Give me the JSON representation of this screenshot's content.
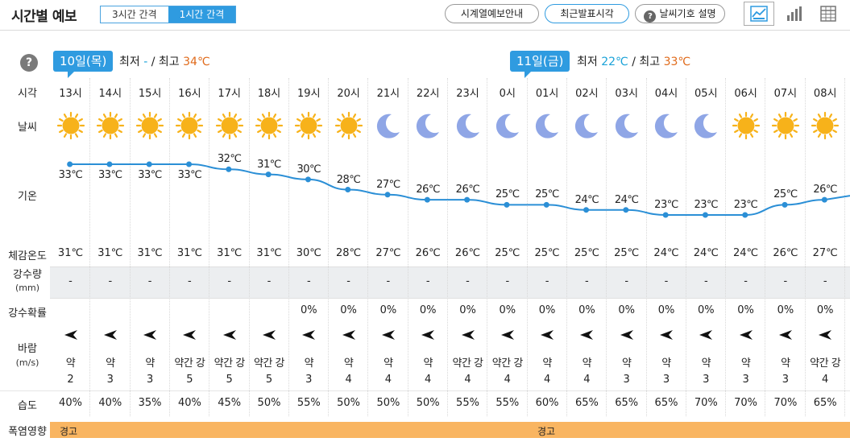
{
  "header": {
    "title": "시간별 예보",
    "seg_3h": "3시간 간격",
    "seg_1h": "1시간 간격",
    "btn_timeseries": "시계열예보안내",
    "btn_recent": "최근발표시각",
    "btn_symbols": "날씨기호 설명",
    "views": [
      "graph-view-icon",
      "bar-view-icon",
      "table-view-icon"
    ]
  },
  "days": [
    {
      "badge": "10일(목)",
      "min_label": "최저",
      "min": "-",
      "sep": "/",
      "max_label": "최고",
      "max": "34℃"
    },
    {
      "badge": "11일(금)",
      "min_label": "최저",
      "min": "22℃",
      "sep": "/",
      "max_label": "최고",
      "max": "33℃"
    }
  ],
  "row_labels": {
    "time": "시각",
    "weather": "날씨",
    "temp": "기온",
    "feels": "체감온도",
    "precip": "강수량",
    "precip_unit": "(mm)",
    "prob": "강수확률",
    "wind": "바람",
    "wind_unit": "(m/s)",
    "humidity": "습도",
    "heat": "폭염영향"
  },
  "hours": [
    "13시",
    "14시",
    "15시",
    "16시",
    "17시",
    "18시",
    "19시",
    "20시",
    "21시",
    "22시",
    "23시",
    "0시",
    "01시",
    "02시",
    "03시",
    "04시",
    "05시",
    "06시",
    "07시",
    "08시"
  ],
  "weather": [
    "sun",
    "sun",
    "sun",
    "sun",
    "sun",
    "sun",
    "sun",
    "sun",
    "moon",
    "moon",
    "moon",
    "moon",
    "moon",
    "moon",
    "moon",
    "moon",
    "moon",
    "sun",
    "sun",
    "sun"
  ],
  "chart_data": {
    "type": "line",
    "x": [
      "13시",
      "14시",
      "15시",
      "16시",
      "17시",
      "18시",
      "19시",
      "20시",
      "21시",
      "22시",
      "23시",
      "0시",
      "01시",
      "02시",
      "03시",
      "04시",
      "05시",
      "06시",
      "07시",
      "08시"
    ],
    "series": [
      {
        "values": [
          33,
          33,
          33,
          33,
          32,
          31,
          30,
          28,
          27,
          26,
          26,
          25,
          25,
          24,
          24,
          23,
          23,
          23,
          25,
          26
        ]
      }
    ],
    "labels": [
      "33℃",
      "33℃",
      "33℃",
      "33℃",
      "32℃",
      "31℃",
      "30℃",
      "28℃",
      "27℃",
      "26℃",
      "26℃",
      "25℃",
      "25℃",
      "24℃",
      "24℃",
      "23℃",
      "23℃",
      "23℃",
      "25℃",
      "26℃"
    ]
  },
  "feels": [
    "31℃",
    "31℃",
    "31℃",
    "31℃",
    "31℃",
    "31℃",
    "30℃",
    "28℃",
    "27℃",
    "26℃",
    "26℃",
    "25℃",
    "25℃",
    "25℃",
    "25℃",
    "24℃",
    "24℃",
    "24℃",
    "26℃",
    "27℃"
  ],
  "precip": [
    "-",
    "-",
    "-",
    "-",
    "-",
    "-",
    "-",
    "-",
    "-",
    "-",
    "-",
    "-",
    "-",
    "-",
    "-",
    "-",
    "-",
    "-",
    "-",
    "-"
  ],
  "prob": [
    "",
    "",
    "",
    "",
    "",
    "",
    "0%",
    "0%",
    "0%",
    "0%",
    "0%",
    "0%",
    "0%",
    "0%",
    "0%",
    "0%",
    "0%",
    "0%",
    "0%",
    "0%"
  ],
  "wind_strength": [
    "약",
    "약",
    "약",
    "약간 강",
    "약간 강",
    "약간 강",
    "약",
    "약",
    "약",
    "약",
    "약간 강",
    "약간 강",
    "약",
    "약",
    "약",
    "약",
    "약",
    "약",
    "약",
    "약간 강"
  ],
  "wind_speed": [
    "2",
    "3",
    "3",
    "5",
    "5",
    "5",
    "3",
    "4",
    "4",
    "4",
    "4",
    "4",
    "4",
    "4",
    "3",
    "3",
    "3",
    "3",
    "3",
    "4"
  ],
  "humidity": [
    "40%",
    "40%",
    "35%",
    "40%",
    "45%",
    "50%",
    "55%",
    "50%",
    "50%",
    "50%",
    "55%",
    "55%",
    "60%",
    "65%",
    "65%",
    "65%",
    "70%",
    "70%",
    "70%",
    "65%"
  ],
  "heat": [
    {
      "label": "경고"
    },
    {
      "label": "경고"
    }
  ],
  "colors": {
    "accent": "#2f9be0",
    "line": "#2b8fd6",
    "sun": "#f7b21a",
    "moon": "#8fa6e6",
    "heat": "#f9b561",
    "max": "#e06a1a",
    "min": "#1aa2d8"
  }
}
